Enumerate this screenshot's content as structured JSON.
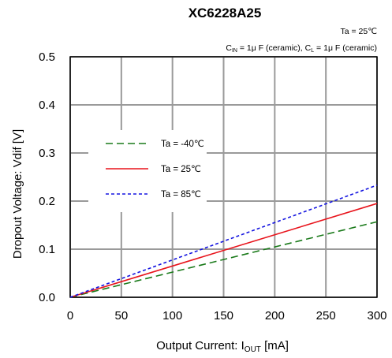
{
  "chart_data": {
    "type": "line",
    "title": "XC6228A25",
    "conditions": {
      "ta": "Ta = 25℃",
      "caps_parts": [
        "C",
        "IN",
        " = 1μ F (ceramic), C",
        "L",
        " = 1μ F (ceramic)"
      ]
    },
    "xlabel_parts": [
      "Output Current: I",
      "OUT",
      " [mA]"
    ],
    "ylabel": "Dropout Voltage: Vdif [V]",
    "xlim": [
      0,
      300
    ],
    "ylim": [
      0,
      0.5
    ],
    "xticks": [
      0,
      50,
      100,
      150,
      200,
      250,
      300
    ],
    "yticks": [
      0.0,
      0.1,
      0.2,
      0.3,
      0.4,
      0.5
    ],
    "ytick_labels": [
      "0.0",
      "0.1",
      "0.2",
      "0.3",
      "0.4",
      "0.5"
    ],
    "grid": true,
    "legend_position": "upper-left",
    "x": [
      0,
      300
    ],
    "series": [
      {
        "name": "Ta = -40℃",
        "values": [
          0,
          0.157
        ],
        "color": "#1a7a1a",
        "style": "dashed"
      },
      {
        "name": "Ta = 25℃",
        "values": [
          0,
          0.195
        ],
        "color": "#e8141c",
        "style": "solid"
      },
      {
        "name": "Ta = 85℃",
        "values": [
          0,
          0.233
        ],
        "color": "#1414e0",
        "style": "dotted"
      }
    ]
  }
}
